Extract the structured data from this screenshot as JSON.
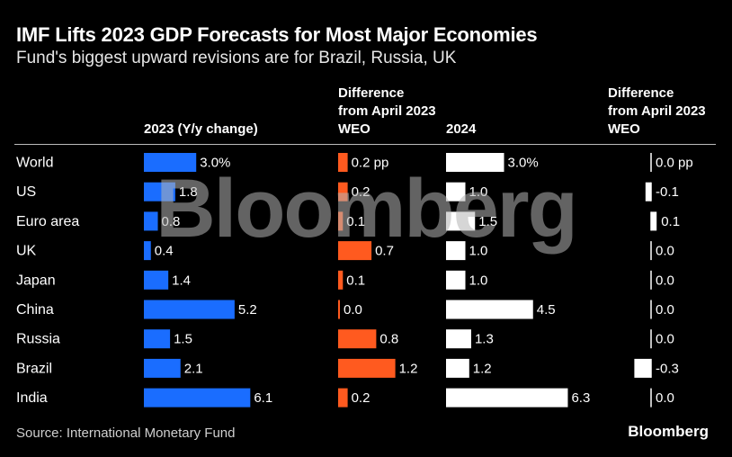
{
  "header": {
    "title": "IMF Lifts 2023 GDP Forecasts for Most Major Economies",
    "subtitle": "Fund's biggest upward revisions are for Brazil, Russia, UK"
  },
  "columns": {
    "c2023": "2023 (Y/y change)",
    "diff2023": "Difference from April 2023 WEO",
    "c2024": "2024",
    "diff2024": "Difference from April 2023 WEO"
  },
  "footer": {
    "source": "Source: International Monetary Fund",
    "brand": "Bloomberg",
    "watermark": "Bloomberg"
  },
  "colors": {
    "blue": "#1a6dff",
    "orange": "#ff5a1f",
    "white": "#ffffff"
  },
  "chart_data": {
    "type": "table",
    "categories": [
      "World",
      "US",
      "Euro area",
      "UK",
      "Japan",
      "China",
      "Russia",
      "Brazil",
      "India"
    ],
    "series": [
      {
        "name": "2023 (Y/y change)",
        "values": [
          3.0,
          1.8,
          0.8,
          0.4,
          1.4,
          5.2,
          1.5,
          2.1,
          6.1
        ],
        "labels": [
          "3.0%",
          "1.8",
          "0.8",
          "0.4",
          "1.4",
          "5.2",
          "1.5",
          "2.1",
          "6.1"
        ]
      },
      {
        "name": "Difference from April 2023 WEO",
        "values": [
          0.2,
          0.2,
          0.1,
          0.7,
          0.1,
          0.0,
          0.8,
          1.2,
          0.2
        ],
        "labels": [
          "0.2 pp",
          "0.2",
          "0.1",
          "0.7",
          "0.1",
          "0.0",
          "0.8",
          "1.2",
          "0.2"
        ]
      },
      {
        "name": "2024",
        "values": [
          3.0,
          1.0,
          1.5,
          1.0,
          1.0,
          4.5,
          1.3,
          1.2,
          6.3
        ],
        "labels": [
          "3.0%",
          "1.0",
          "1.5",
          "1.0",
          "1.0",
          "4.5",
          "1.3",
          "1.2",
          "6.3"
        ]
      },
      {
        "name": "Difference from April 2023 WEO",
        "values": [
          0.0,
          -0.1,
          0.1,
          0.0,
          0.0,
          0.0,
          0.0,
          -0.3,
          0.0
        ],
        "labels": [
          "0.0 pp",
          "-0.1",
          "0.1",
          "0.0",
          "0.0",
          "0.0",
          "0.0",
          "-0.3",
          "0.0"
        ]
      }
    ]
  }
}
